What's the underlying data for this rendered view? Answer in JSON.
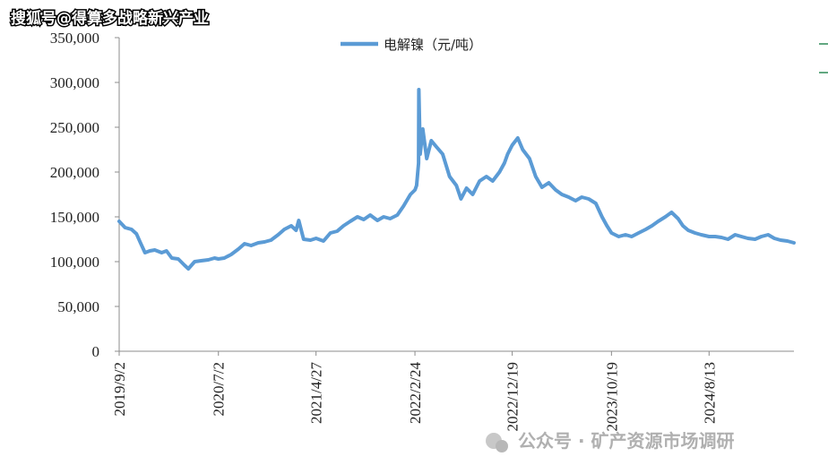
{
  "watermark_top": "搜狐号@得算多战略新兴产业",
  "watermark_bottom": "公众号 · 矿产资源市场调研",
  "colors": {
    "line": "#5b9bd5",
    "axis": "#8c8c8c",
    "edge_mark": "#2e8b57"
  },
  "chart_data": {
    "type": "line",
    "title": "",
    "xlabel": "",
    "ylabel": "",
    "ylim": [
      0,
      350000
    ],
    "yticks": [
      0,
      50000,
      100000,
      150000,
      200000,
      250000,
      300000,
      350000
    ],
    "ytick_labels": [
      "0",
      "50,000",
      "100,000",
      "150,000",
      "200,000",
      "250,000",
      "300,000",
      "350,000"
    ],
    "xlim": [
      "2019-09-02",
      "2025-04-30"
    ],
    "xticks": [
      "2019-09-02",
      "2020-07-02",
      "2021-04-27",
      "2022-02-24",
      "2022-12-19",
      "2023-10-19",
      "2024-08-13"
    ],
    "xtick_labels": [
      "2019/9/2",
      "2020/7/2",
      "2021/4/27",
      "2022/2/24",
      "2022/12/19",
      "2023/10/19",
      "2024/8/13"
    ],
    "grid": false,
    "legend_position": "top-center",
    "series": [
      {
        "name": "电解镍（元/吨）",
        "x": [
          "2019-09-02",
          "2019-09-20",
          "2019-10-10",
          "2019-10-25",
          "2019-11-05",
          "2019-11-20",
          "2019-12-05",
          "2019-12-20",
          "2020-01-10",
          "2020-01-25",
          "2020-02-10",
          "2020-03-01",
          "2020-03-20",
          "2020-04-01",
          "2020-04-20",
          "2020-05-10",
          "2020-06-01",
          "2020-06-20",
          "2020-07-02",
          "2020-07-20",
          "2020-08-10",
          "2020-09-01",
          "2020-09-20",
          "2020-10-10",
          "2020-11-01",
          "2020-11-20",
          "2020-12-10",
          "2021-01-01",
          "2021-01-20",
          "2021-02-10",
          "2021-02-25",
          "2021-03-05",
          "2021-03-20",
          "2021-04-10",
          "2021-04-27",
          "2021-05-20",
          "2021-06-10",
          "2021-07-01",
          "2021-07-20",
          "2021-08-10",
          "2021-09-01",
          "2021-09-20",
          "2021-10-10",
          "2021-11-01",
          "2021-11-20",
          "2021-12-10",
          "2022-01-01",
          "2022-01-20",
          "2022-02-10",
          "2022-02-24",
          "2022-03-01",
          "2022-03-07",
          "2022-03-08",
          "2022-03-12",
          "2022-03-20",
          "2022-04-01",
          "2022-04-15",
          "2022-05-01",
          "2022-05-20",
          "2022-06-10",
          "2022-07-01",
          "2022-07-15",
          "2022-08-01",
          "2022-08-20",
          "2022-09-10",
          "2022-10-01",
          "2022-10-20",
          "2022-11-10",
          "2022-11-25",
          "2022-12-05",
          "2022-12-19",
          "2023-01-05",
          "2023-01-20",
          "2023-02-10",
          "2023-03-01",
          "2023-03-20",
          "2023-04-10",
          "2023-05-01",
          "2023-05-20",
          "2023-06-10",
          "2023-07-01",
          "2023-07-20",
          "2023-08-10",
          "2023-09-01",
          "2023-09-20",
          "2023-10-05",
          "2023-10-19",
          "2023-11-10",
          "2023-12-01",
          "2023-12-20",
          "2024-01-10",
          "2024-02-01",
          "2024-02-20",
          "2024-03-10",
          "2024-04-01",
          "2024-04-20",
          "2024-05-10",
          "2024-05-25",
          "2024-06-10",
          "2024-07-01",
          "2024-07-20",
          "2024-08-13",
          "2024-09-01",
          "2024-09-20",
          "2024-10-10",
          "2024-11-01",
          "2024-11-20",
          "2024-12-10",
          "2025-01-01",
          "2025-01-20",
          "2025-02-10",
          "2025-03-01",
          "2025-03-20",
          "2025-04-10",
          "2025-04-30"
        ],
        "y": [
          145000,
          138000,
          136000,
          131000,
          122000,
          110000,
          112000,
          113000,
          110000,
          112000,
          104000,
          103000,
          96000,
          92000,
          100000,
          101000,
          102000,
          104000,
          103000,
          104000,
          108000,
          114000,
          120000,
          118000,
          121000,
          122000,
          124000,
          130000,
          136000,
          140000,
          135000,
          146000,
          125000,
          124000,
          126000,
          123000,
          132000,
          134000,
          140000,
          145000,
          150000,
          147000,
          152000,
          146000,
          150000,
          148000,
          152000,
          162000,
          175000,
          180000,
          185000,
          210000,
          292000,
          220000,
          248000,
          215000,
          235000,
          228000,
          220000,
          195000,
          185000,
          170000,
          182000,
          175000,
          190000,
          195000,
          190000,
          200000,
          210000,
          220000,
          230000,
          238000,
          225000,
          215000,
          195000,
          183000,
          188000,
          180000,
          175000,
          172000,
          168000,
          172000,
          170000,
          165000,
          150000,
          140000,
          132000,
          128000,
          130000,
          128000,
          132000,
          136000,
          140000,
          145000,
          150000,
          155000,
          148000,
          140000,
          135000,
          132000,
          130000,
          128000,
          128000,
          127000,
          125000,
          130000,
          128000,
          126000,
          125000,
          128000,
          130000,
          126000,
          124000,
          123000,
          121000
        ]
      }
    ]
  }
}
